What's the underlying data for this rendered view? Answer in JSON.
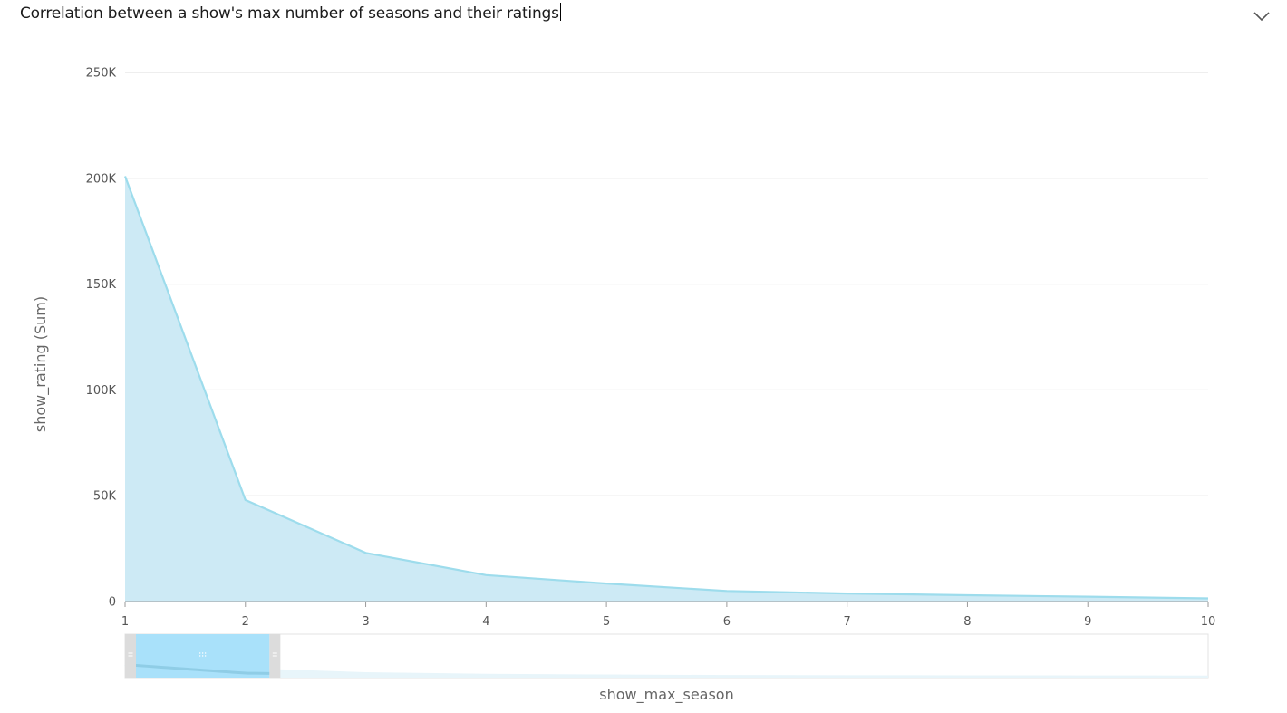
{
  "header": {
    "title": "Correlation between a show's max number of seasons and their ratings",
    "collapse_icon": "chevron-down-icon"
  },
  "chart_data": {
    "type": "area",
    "title": "Correlation between a show's max number of seasons and their ratings",
    "xlabel": "show_max_season",
    "ylabel": "show_rating (Sum)",
    "x": [
      1,
      2,
      3,
      4,
      5,
      6,
      7,
      8,
      9,
      10
    ],
    "y_ticks": [
      0,
      50000,
      100000,
      150000,
      200000,
      250000
    ],
    "y_tick_labels": [
      "0",
      "50K",
      "100K",
      "150K",
      "200K",
      "250K"
    ],
    "x_tick_labels": [
      "1",
      "2",
      "3",
      "4",
      "5",
      "6",
      "7",
      "8",
      "9",
      "10"
    ],
    "series": [
      {
        "values": [
          201000,
          48000,
          23000,
          12500,
          8500,
          5000,
          3800,
          3000,
          2300,
          1500
        ]
      }
    ],
    "xlim": [
      1,
      10
    ],
    "ylim": [
      0,
      250000
    ],
    "grid": true,
    "colors": {
      "fill": "#cdeaf5",
      "line": "#9ddcec",
      "grid": "#dcdcdc",
      "axis": "#9a9a9a"
    },
    "range_slider": {
      "selected_from": 1,
      "selected_to": 2.2,
      "handle_color": "#dcdcdc",
      "selection_color": "#a9e1fa",
      "grip_icon": "grip-dots-icon"
    }
  }
}
